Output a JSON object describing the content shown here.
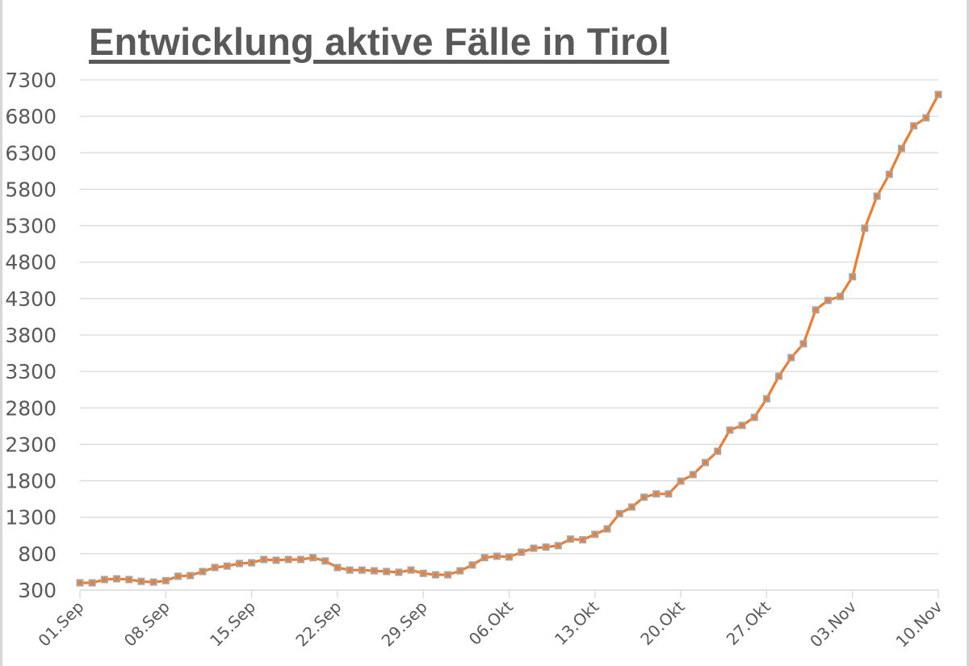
{
  "chart_data": {
    "type": "line",
    "title": "Entwicklung aktive Fälle in Tirol",
    "xlabel": "",
    "ylabel": "",
    "ylim": [
      300,
      7300
    ],
    "yticks": [
      300,
      800,
      1300,
      1800,
      2300,
      2800,
      3300,
      3800,
      4300,
      4800,
      5300,
      5800,
      6300,
      6800,
      7300
    ],
    "x_tick_labels": [
      "01.Sep",
      "08.Sep",
      "15.Sep",
      "22.Sep",
      "29.Sep",
      "06.Okt",
      "13.Okt",
      "20.Okt",
      "27.Okt",
      "03.Nov",
      "10.Nov"
    ],
    "grid": true,
    "legend": null,
    "line_color": "#ed7d31",
    "marker_color": "#a5a5a5",
    "x_start": "01.Sep",
    "x_end": "10.Nov",
    "series": [
      {
        "name": "Aktive Fälle",
        "values": [
          400,
          400,
          445,
          455,
          445,
          420,
          410,
          430,
          490,
          500,
          555,
          610,
          630,
          665,
          675,
          720,
          710,
          720,
          720,
          745,
          700,
          610,
          575,
          575,
          565,
          555,
          545,
          575,
          530,
          510,
          510,
          565,
          645,
          745,
          765,
          755,
          820,
          875,
          890,
          910,
          1000,
          990,
          1065,
          1140,
          1350,
          1440,
          1575,
          1620,
          1620,
          1795,
          1885,
          2050,
          2205,
          2495,
          2560,
          2670,
          2925,
          3235,
          3490,
          3680,
          4145,
          4275,
          4330,
          4600,
          5265,
          5705,
          6005,
          6360,
          6670,
          6780,
          7100
        ]
      }
    ]
  }
}
